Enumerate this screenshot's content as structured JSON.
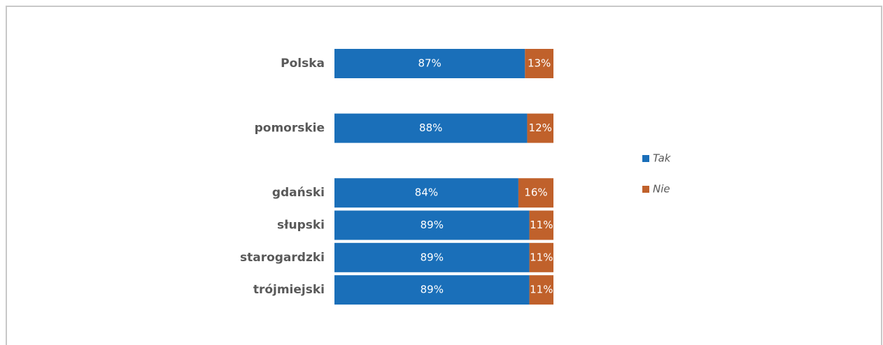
{
  "chart_data": {
    "type": "stacked-bar-horizontal",
    "categories": [
      "Polska",
      null,
      "pomorskie",
      null,
      "gdański",
      "słupski",
      "starogardzki",
      "trójmiejski"
    ],
    "series": [
      {
        "name": "Tak",
        "color": "#1a6fb9",
        "values": [
          87,
          null,
          88,
          null,
          84,
          89,
          89,
          89
        ],
        "value_labels": [
          "87%",
          null,
          "88%",
          null,
          "84%",
          "89%",
          "89%",
          "89%"
        ]
      },
      {
        "name": "Nie",
        "color": "#c0612b",
        "values": [
          13,
          null,
          12,
          null,
          16,
          11,
          11,
          11
        ],
        "value_labels": [
          "13%",
          null,
          "12%",
          null,
          "16%",
          "11%",
          "11%",
          "11%"
        ]
      }
    ],
    "xlim": [
      0,
      100
    ],
    "legend": "right"
  }
}
